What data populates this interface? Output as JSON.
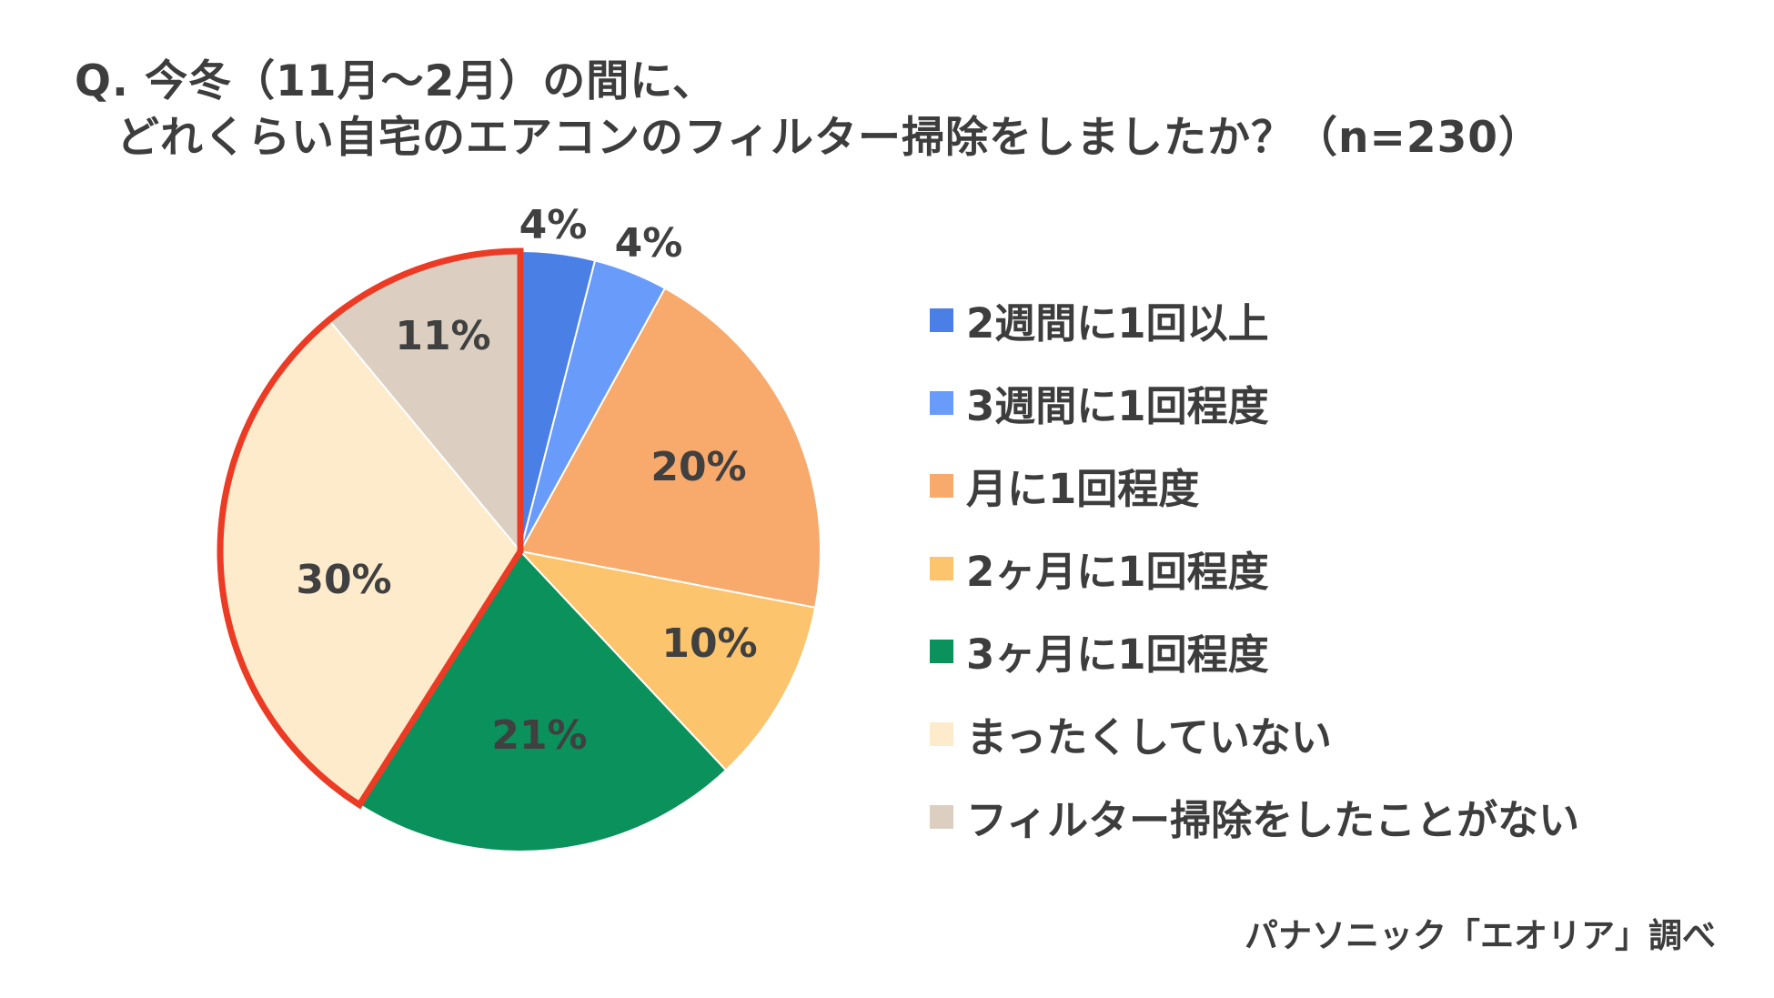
{
  "title": {
    "line1": "Q. 今冬（11月～2月）の間に、",
    "line2": "どれくらい自宅のエアコンのフィルター掃除をしましたか？（n=230）"
  },
  "source_note": "パナソニック「エオリア」調べ",
  "chart_data": {
    "type": "pie",
    "title": "Q. 今冬（11月～2月）の間に、どれくらい自宅のエアコンのフィルター掃除をしましたか？（n=230）",
    "slices": [
      {
        "name": "2週間に1回以上",
        "value": 4,
        "label": "4%",
        "color": "#4a7fe6"
      },
      {
        "name": "3週間に1回程度",
        "value": 4,
        "label": "4%",
        "color": "#699bfb"
      },
      {
        "name": "月に1回程度",
        "value": 20,
        "label": "20%",
        "color": "#f8a96c"
      },
      {
        "name": "2ヶ月に1回程度",
        "value": 10,
        "label": "10%",
        "color": "#fcc46c"
      },
      {
        "name": "3ヶ月に1回程度",
        "value": 21,
        "label": "21%",
        "color": "#0b915b"
      },
      {
        "name": "まったくしていない",
        "value": 30,
        "label": "30%",
        "color": "#fdebcc"
      },
      {
        "name": "フィルター掃除をしたことがない",
        "value": 11,
        "label": "11%",
        "color": "#dccfc2"
      }
    ],
    "start_angle_deg": 0,
    "direction": "clockwise",
    "legend_position": "right",
    "highlight": {
      "slices": [
        "まったくしていない",
        "フィルター掃除をしたことがない"
      ],
      "outline_color": "#ec3b24"
    }
  }
}
